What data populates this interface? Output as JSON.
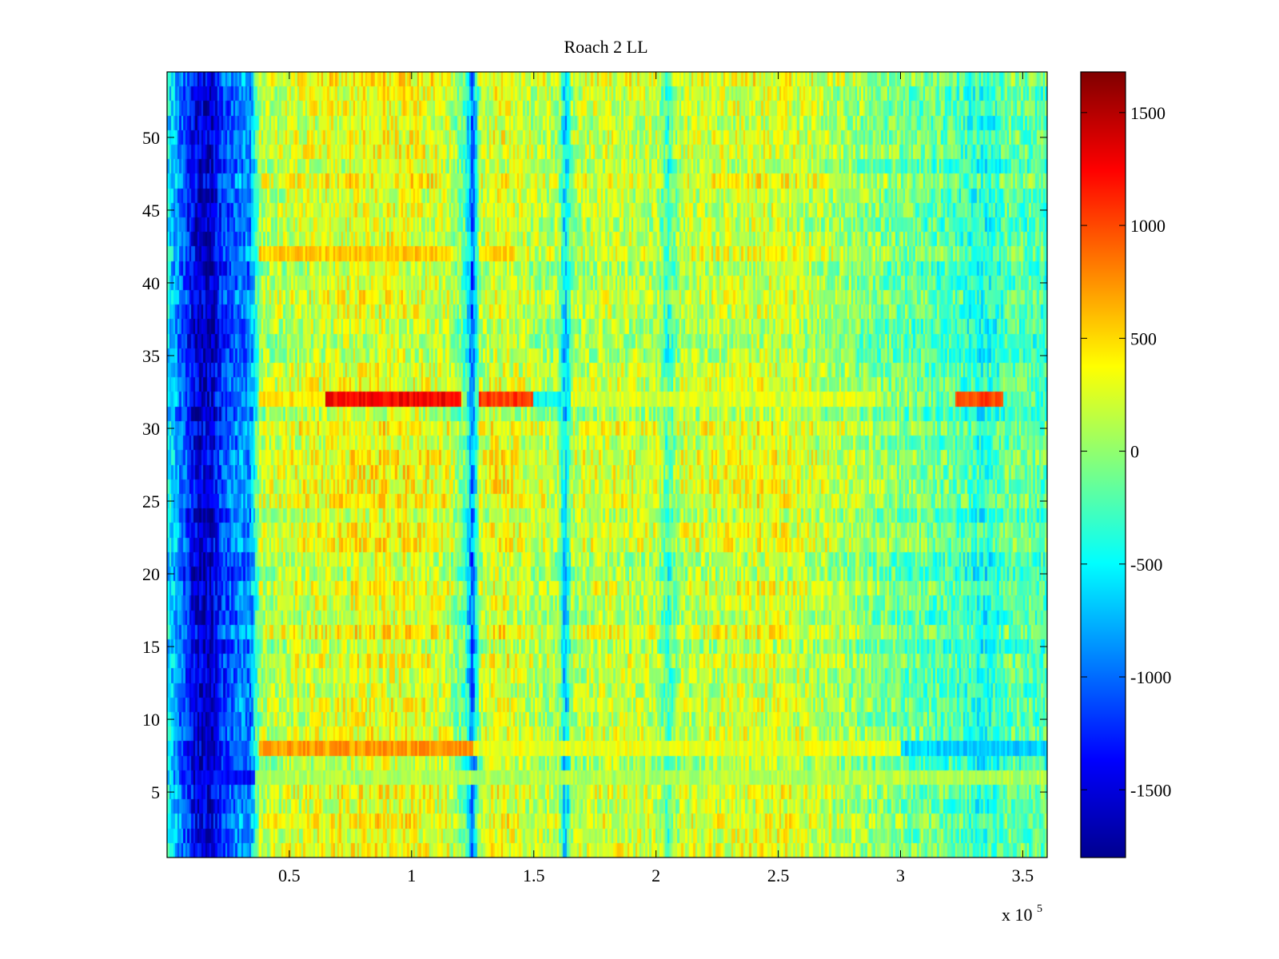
{
  "chart_data": {
    "type": "heatmap",
    "title": "Roach 2 LL",
    "xlabel": "",
    "ylabel": "",
    "x_range": [
      0,
      360000
    ],
    "y_range": [
      0.5,
      54.5
    ],
    "rows": 54,
    "x_ticks": [
      50000,
      100000,
      150000,
      200000,
      250000,
      300000,
      350000
    ],
    "x_tick_labels": [
      "0.5",
      "1",
      "1.5",
      "2",
      "2.5",
      "3",
      "3.5"
    ],
    "x_exponent_label": "x 10",
    "x_exponent_power": "5",
    "y_ticks": [
      5,
      10,
      15,
      20,
      25,
      30,
      35,
      40,
      45,
      50
    ],
    "y_tick_labels": [
      "5",
      "10",
      "15",
      "20",
      "25",
      "30",
      "35",
      "40",
      "45",
      "50"
    ],
    "colorbar": {
      "colormap": "jet",
      "range": [
        -1800,
        1680
      ],
      "ticks": [
        -1500,
        -1000,
        -500,
        0,
        500,
        1000,
        1500
      ],
      "tick_labels": [
        "-1500",
        "-1000",
        "-500",
        "0",
        "500",
        "1000",
        "1500"
      ]
    },
    "value_profile_x": [
      0,
      12000,
      18000,
      22000,
      30000,
      34000,
      38000,
      50000,
      80000,
      100000,
      115000,
      122000,
      125000,
      128000,
      134000,
      150000,
      160000,
      163000,
      166000,
      180000,
      200000,
      205000,
      210000,
      250000,
      300000,
      320000,
      335000,
      340000,
      345000,
      360000
    ],
    "value_profile_z": [
      -500,
      -1500,
      -1550,
      -1200,
      -900,
      -950,
      100,
      200,
      300,
      300,
      200,
      -200,
      -1050,
      100,
      300,
      150,
      100,
      -750,
      100,
      200,
      150,
      -300,
      150,
      250,
      -100,
      -200,
      -400,
      -300,
      -150,
      -250
    ],
    "highlight_rows": [
      {
        "row": 32,
        "segments": [
          [
            38000,
            65000,
            450
          ],
          [
            65000,
            120000,
            1250
          ],
          [
            128000,
            150000,
            1050
          ],
          [
            150000,
            165000,
            -500
          ],
          [
            165000,
            290000,
            250
          ],
          [
            322000,
            342000,
            1000
          ]
        ]
      },
      {
        "row": 8,
        "segments": [
          [
            38000,
            125000,
            700
          ],
          [
            125000,
            300000,
            300
          ],
          [
            300000,
            360000,
            -650
          ]
        ]
      },
      {
        "row": 6,
        "segments": [
          [
            12000,
            36000,
            -1350
          ],
          [
            36000,
            360000,
            100
          ]
        ]
      },
      {
        "row": 42,
        "segments": [
          [
            38000,
            115000,
            550
          ],
          [
            128000,
            142000,
            550
          ]
        ]
      }
    ]
  }
}
